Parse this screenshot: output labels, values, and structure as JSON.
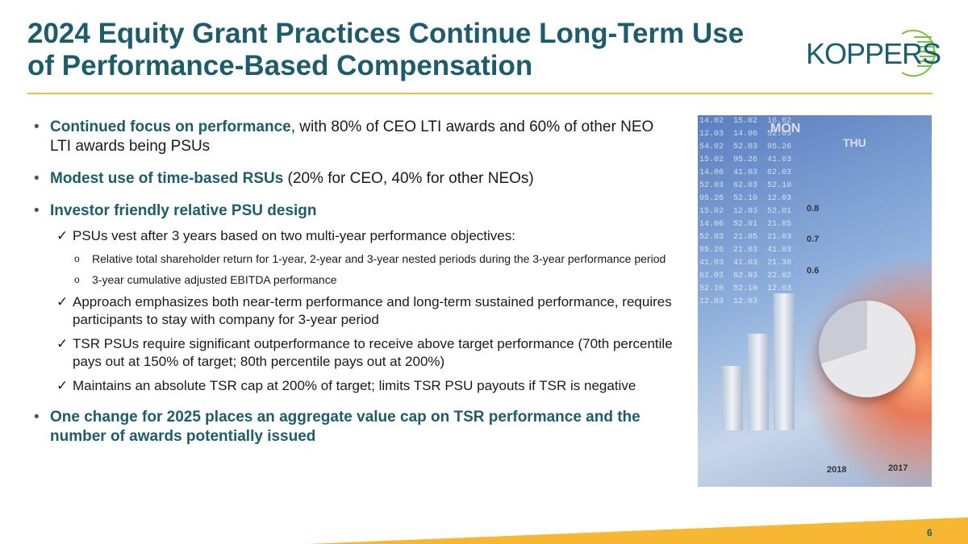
{
  "title": "2024 Equity Grant Practices Continue Long-Term Use of Performance-Based Compensation",
  "logo": {
    "text": "KOPPERS"
  },
  "bullets": [
    {
      "bold": "Continued focus on performance",
      "rest": ", with 80% of CEO LTI awards and 60% of other NEO LTI awards being PSUs"
    },
    {
      "bold": "Modest use of time-based RSUs",
      "rest": " (20% for CEO, 40% for other NEOs)"
    },
    {
      "bold": "Investor friendly relative PSU design",
      "rest": ""
    }
  ],
  "sub": [
    "PSUs vest after 3 years based on two multi-year performance objectives:",
    "Approach emphasizes both near-term performance and long-term sustained performance, requires participants to stay with company for 3-year period",
    "TSR PSUs require significant outperformance to receive above target performance (70th percentile pays out at 150% of target; 80th percentile pays out at 200%)",
    "Maintains an absolute TSR cap at 200% of target; limits TSR PSU payouts if TSR is negative"
  ],
  "subsub": [
    "Relative total shareholder return for 1-year, 2-year and 3-year nested periods during the 3-year performance period",
    "3-year cumulative adjusted EBITDA performance"
  ],
  "last_bullet": {
    "bold": "One change for 2025 places an aggregate value cap on TSR performance and the number of awards potentially issued"
  },
  "markers": {
    "check": "✓",
    "circle": "o"
  },
  "photo": {
    "labels": [
      "MON",
      "THU",
      "0.8",
      "0.7",
      "0.6",
      "2018",
      "2017"
    ]
  },
  "page_number": "6",
  "colors": {
    "title": "#1d5c6b",
    "accent": "#f7b733",
    "logo_green": "#7cc242"
  }
}
